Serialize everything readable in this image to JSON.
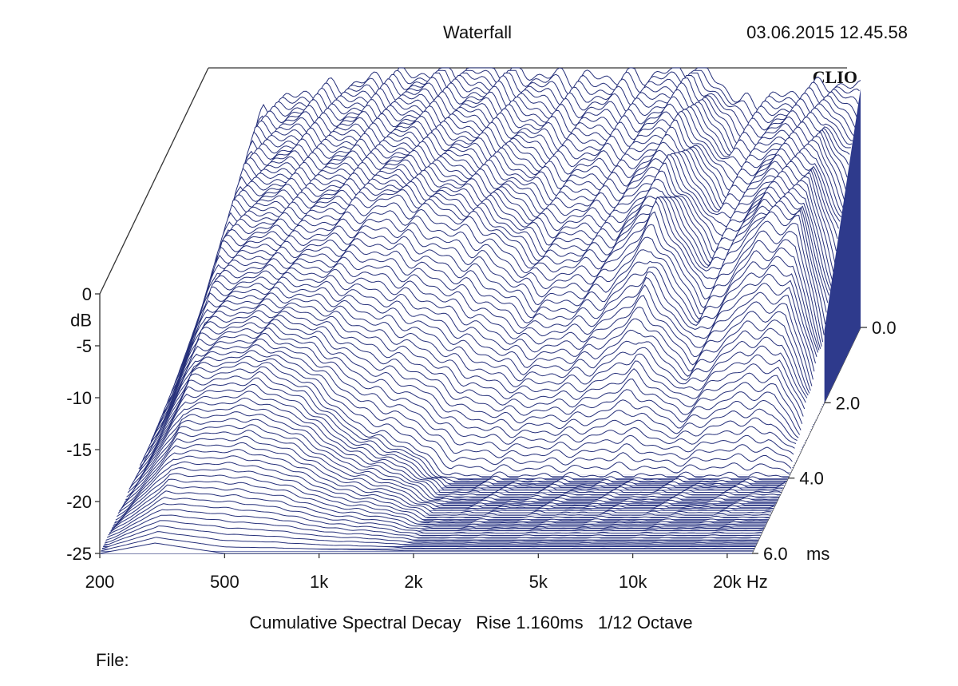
{
  "header": {
    "title": "Waterfall",
    "timestamp": "03.06.2015 12.45.58",
    "brand": "CLIO"
  },
  "footer": {
    "caption": "Cumulative Spectral Decay   Rise 1.160ms   1/12 Octave",
    "file_label": "File:"
  },
  "colors": {
    "trace": "#26307a",
    "floor": "#2e3a8c",
    "axis": "#333333"
  },
  "chart_data": {
    "type": "waterfall",
    "title": "Waterfall",
    "subtitle": "Cumulative Spectral Decay   Rise 1.160ms   1/12 Octave",
    "x_axis": {
      "scale": "log",
      "range": [
        200,
        24000
      ],
      "ticks": [
        200,
        500,
        1000,
        2000,
        5000,
        10000,
        20000
      ],
      "tick_labels": [
        "200",
        "500",
        "1k",
        "2k",
        "5k",
        "10k",
        "20k"
      ],
      "unit": "Hz"
    },
    "y_axis": {
      "range": [
        -25,
        0
      ],
      "ticks": [
        0,
        -5,
        -10,
        -15,
        -20,
        -25
      ],
      "tick_labels": [
        "0",
        "-5",
        "-10",
        "-15",
        "-20",
        "-25"
      ],
      "unit": "dB"
    },
    "z_axis": {
      "range": [
        0,
        6
      ],
      "ticks": [
        0,
        2,
        4,
        6
      ],
      "tick_labels": [
        "0.0",
        "2.0",
        "4.0",
        "6.0"
      ],
      "unit": "ms"
    },
    "series": [
      {
        "time_ms": 0,
        "freq_hz": [
          200,
          250,
          300,
          400,
          500,
          700,
          1000,
          1500,
          2000,
          3000,
          5000,
          7000,
          8000,
          10000,
          12000,
          15000,
          20000,
          24000
        ],
        "level_db": [
          -25,
          -12,
          -4,
          -2.5,
          -2,
          -1,
          -0.5,
          0,
          -0.5,
          -1,
          -0.8,
          0,
          -0.5,
          -3.5,
          -3,
          -2.5,
          -1.5,
          -2
        ]
      },
      {
        "time_ms": 2,
        "freq_hz": [
          200,
          300,
          500,
          1000,
          2000,
          3000,
          5000,
          7000,
          10000,
          15000,
          20000,
          24000
        ],
        "level_db": [
          -25,
          -8,
          -7,
          -5,
          -8,
          -12,
          -11,
          -6,
          -14,
          -7,
          -7,
          -18
        ]
      },
      {
        "time_ms": 4,
        "freq_hz": [
          200,
          300,
          500,
          700,
          1000,
          1500,
          2000,
          3000,
          24000
        ],
        "level_db": [
          -25,
          -15,
          -14,
          -16,
          -20,
          -22,
          -25,
          -25,
          -25
        ]
      },
      {
        "time_ms": 6,
        "freq_hz": [
          200,
          300,
          500,
          1000,
          24000
        ],
        "level_db": [
          -25,
          -24,
          -25,
          -25,
          -25
        ]
      }
    ]
  }
}
